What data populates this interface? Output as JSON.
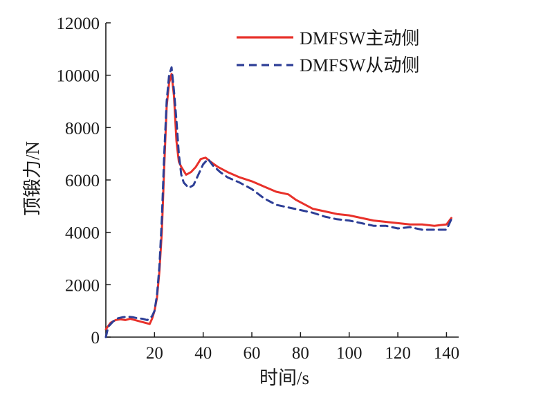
{
  "chart_data": {
    "type": "line",
    "xlabel": "时间/s",
    "ylabel": "顶锻力/N",
    "xlim": [
      0,
      145
    ],
    "ylim": [
      0,
      12000
    ],
    "x_ticks": [
      20,
      40,
      60,
      80,
      100,
      120,
      140
    ],
    "y_ticks": [
      0,
      2000,
      4000,
      6000,
      8000,
      10000,
      12000
    ],
    "grid": false,
    "legend_position": "top-right",
    "series": [
      {
        "name": "DMFSW主动侧",
        "color": "#e8312a",
        "dash": "solid",
        "points": [
          [
            0,
            300
          ],
          [
            2,
            550
          ],
          [
            4,
            650
          ],
          [
            6,
            680
          ],
          [
            8,
            650
          ],
          [
            10,
            700
          ],
          [
            12,
            650
          ],
          [
            14,
            600
          ],
          [
            16,
            550
          ],
          [
            18,
            500
          ],
          [
            19,
            700
          ],
          [
            20,
            1000
          ],
          [
            21,
            1500
          ],
          [
            22,
            2500
          ],
          [
            23,
            4000
          ],
          [
            24,
            6500
          ],
          [
            25,
            8800
          ],
          [
            26,
            9700
          ],
          [
            27,
            10050
          ],
          [
            28,
            9200
          ],
          [
            29,
            7500
          ],
          [
            30,
            6700
          ],
          [
            31,
            6500
          ],
          [
            33,
            6200
          ],
          [
            35,
            6300
          ],
          [
            37,
            6500
          ],
          [
            39,
            6800
          ],
          [
            41,
            6850
          ],
          [
            43,
            6700
          ],
          [
            46,
            6500
          ],
          [
            50,
            6300
          ],
          [
            55,
            6100
          ],
          [
            60,
            5950
          ],
          [
            65,
            5750
          ],
          [
            70,
            5550
          ],
          [
            75,
            5450
          ],
          [
            78,
            5250
          ],
          [
            82,
            5050
          ],
          [
            85,
            4900
          ],
          [
            90,
            4800
          ],
          [
            95,
            4700
          ],
          [
            100,
            4650
          ],
          [
            105,
            4550
          ],
          [
            110,
            4450
          ],
          [
            115,
            4400
          ],
          [
            120,
            4350
          ],
          [
            125,
            4300
          ],
          [
            130,
            4300
          ],
          [
            135,
            4250
          ],
          [
            140,
            4300
          ],
          [
            142,
            4550
          ]
        ]
      },
      {
        "name": "DMFSW从动侧",
        "color": "#2d3e96",
        "dash": "dashed",
        "points": [
          [
            0,
            0
          ],
          [
            1,
            400
          ],
          [
            3,
            600
          ],
          [
            5,
            720
          ],
          [
            7,
            760
          ],
          [
            9,
            780
          ],
          [
            11,
            760
          ],
          [
            13,
            720
          ],
          [
            15,
            700
          ],
          [
            17,
            650
          ],
          [
            18,
            700
          ],
          [
            19,
            800
          ],
          [
            20,
            1000
          ],
          [
            21,
            1600
          ],
          [
            22,
            2700
          ],
          [
            23,
            4500
          ],
          [
            24,
            7000
          ],
          [
            25,
            9000
          ],
          [
            26,
            10000
          ],
          [
            27,
            10300
          ],
          [
            28,
            9400
          ],
          [
            29,
            8300
          ],
          [
            30,
            7000
          ],
          [
            31,
            6200
          ],
          [
            32,
            5900
          ],
          [
            34,
            5700
          ],
          [
            36,
            5800
          ],
          [
            38,
            6200
          ],
          [
            40,
            6600
          ],
          [
            42,
            6800
          ],
          [
            44,
            6550
          ],
          [
            47,
            6300
          ],
          [
            50,
            6100
          ],
          [
            55,
            5900
          ],
          [
            60,
            5650
          ],
          [
            65,
            5300
          ],
          [
            70,
            5050
          ],
          [
            75,
            4950
          ],
          [
            80,
            4850
          ],
          [
            85,
            4750
          ],
          [
            90,
            4600
          ],
          [
            95,
            4500
          ],
          [
            100,
            4450
          ],
          [
            105,
            4350
          ],
          [
            110,
            4250
          ],
          [
            115,
            4250
          ],
          [
            120,
            4150
          ],
          [
            125,
            4200
          ],
          [
            130,
            4100
          ],
          [
            135,
            4100
          ],
          [
            140,
            4100
          ],
          [
            142,
            4500
          ]
        ]
      }
    ]
  }
}
